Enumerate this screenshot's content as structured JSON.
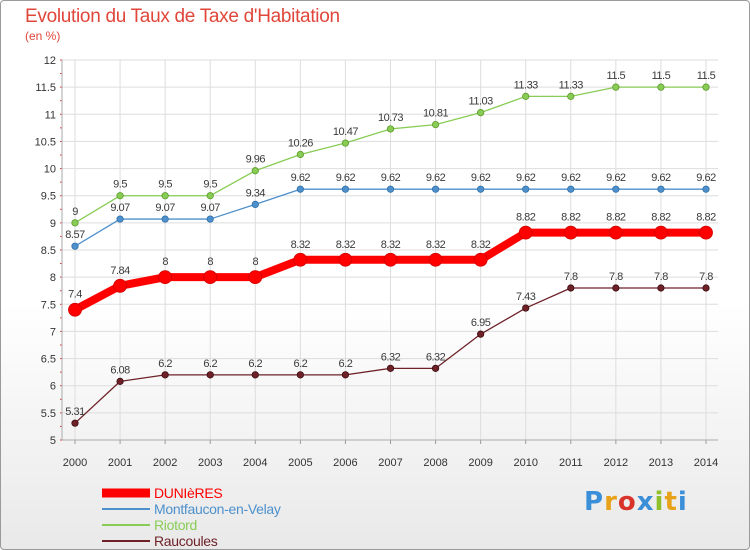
{
  "header": {
    "title": "Evolution du Taux de Taxe d'Habitation",
    "subtitle": "(en %)"
  },
  "logo": {
    "text": "Proxiti",
    "colors": [
      "#3b8fd9",
      "#e8a21a",
      "#d9342b",
      "#3b8fd9",
      "#8fbf2a",
      "#e8a21a",
      "#3b8fd9"
    ]
  },
  "chart_data": {
    "type": "line",
    "x": [
      2000,
      2001,
      2002,
      2003,
      2004,
      2005,
      2006,
      2007,
      2008,
      2009,
      2010,
      2011,
      2012,
      2013,
      2014
    ],
    "ylim": [
      5,
      12
    ],
    "yticks": [
      "5",
      "5.5",
      "6",
      "6.5",
      "7",
      "7.5",
      "8",
      "8.5",
      "9",
      "9.5",
      "10",
      "10.5",
      "11",
      "11.5",
      "12"
    ],
    "grid": true,
    "legend_position": "bottom-left",
    "series": [
      {
        "name": "DUNIèRES",
        "color": "#ff0000",
        "values": [
          7.4,
          7.84,
          8,
          8,
          8,
          8.32,
          8.32,
          8.32,
          8.32,
          8.32,
          8.82,
          8.82,
          8.82,
          8.82,
          8.82
        ],
        "labels": [
          "7.4",
          "7.84",
          "8",
          "8",
          "8",
          "8.32",
          "8.32",
          "8.32",
          "8.32",
          "8.32",
          "8.82",
          "8.82",
          "8.82",
          "8.82",
          "8.82"
        ]
      },
      {
        "name": "Montfaucon-en-Velay",
        "color": "#4d90cc",
        "values": [
          8.57,
          9.07,
          9.07,
          9.07,
          9.34,
          9.62,
          9.62,
          9.62,
          9.62,
          9.62,
          9.62,
          9.62,
          9.62,
          9.62,
          9.62
        ],
        "labels": [
          "8.57",
          "9.07",
          "9.07",
          "9.07",
          "9.34",
          "9.62",
          "9.62",
          "9.62",
          "9.62",
          "9.62",
          "9.62",
          "9.62",
          "9.62",
          "9.62",
          "9.62"
        ]
      },
      {
        "name": "Riotord",
        "color": "#88cc55",
        "values": [
          9,
          9.5,
          9.5,
          9.5,
          9.96,
          10.26,
          10.47,
          10.73,
          10.81,
          11.03,
          11.33,
          11.33,
          11.5,
          11.5,
          11.5
        ],
        "labels": [
          "9",
          "9.5",
          "9.5",
          "9.5",
          "9.96",
          "10.26",
          "10.47",
          "10.73",
          "10.81",
          "11.03",
          "11.33",
          "11.33",
          "11.5",
          "11.5",
          "11.5"
        ]
      },
      {
        "name": "Raucoules",
        "color": "#6e2228",
        "values": [
          5.31,
          6.08,
          6.2,
          6.2,
          6.2,
          6.2,
          6.2,
          6.32,
          6.32,
          6.95,
          7.43,
          7.8,
          7.8,
          7.8,
          7.8
        ],
        "labels": [
          "5.31",
          "6.08",
          "6.2",
          "6.2",
          "6.2",
          "6.2",
          "6.2",
          "6.32",
          "6.32",
          "6.95",
          "7.43",
          "7.8",
          "7.8",
          "7.8",
          "7.8"
        ]
      }
    ]
  }
}
